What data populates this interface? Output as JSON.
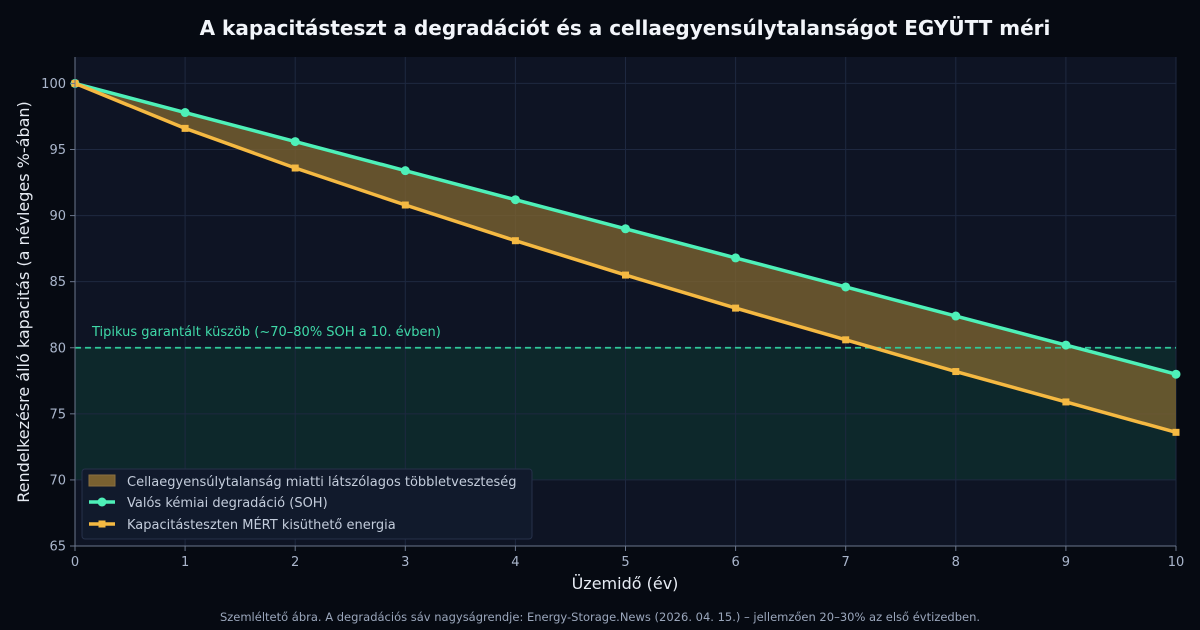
{
  "chart_data": {
    "type": "line",
    "title": "A kapacitásteszt a degradációt és a cellaegyensúlytalanságot EGYÜTT méri",
    "xlabel": "Üzemidő (év)",
    "ylabel": "Rendelkezésre álló kapacitás (a névleges %-ában)",
    "xlim": [
      0,
      10
    ],
    "ylim": [
      65,
      102
    ],
    "x_ticks": [
      0,
      1,
      2,
      3,
      4,
      5,
      6,
      7,
      8,
      9,
      10
    ],
    "y_ticks": [
      65,
      70,
      75,
      80,
      85,
      90,
      95,
      100
    ],
    "grid": true,
    "legend_position": "lower-left",
    "x": [
      0,
      1,
      2,
      3,
      4,
      5,
      6,
      7,
      8,
      9,
      10
    ],
    "series": [
      {
        "name": "Valós kémiai degradáció (SOH)",
        "color": "#4ef0b8",
        "marker": "circle",
        "values": [
          100,
          97.8,
          95.6,
          93.4,
          91.2,
          89.0,
          86.8,
          84.6,
          82.4,
          80.2,
          78.0
        ]
      },
      {
        "name": "Kapacitásteszten MÉRT kisüthető energia",
        "color": "#f5b942",
        "marker": "square",
        "values": [
          100,
          96.6,
          93.6,
          90.8,
          88.1,
          85.5,
          83.0,
          80.6,
          78.2,
          75.9,
          73.6
        ]
      }
    ],
    "band": {
      "name": "Cellaegyensúlytalanság miatti látszólagos többletveszteség",
      "color": "#7a6130"
    },
    "threshold": {
      "value": 80,
      "zone_range": [
        70,
        80
      ],
      "label": "Tipikus garantált küszöb (~70–80% SOH a 10. évben)",
      "color": "#2ec99a"
    },
    "footnote": "Szemléltető ábra. A degradációs sáv nagyságrendje: Energy-Storage.News (2026. 04. 15.) – jellemzően 20–30% az első évtizedben."
  }
}
